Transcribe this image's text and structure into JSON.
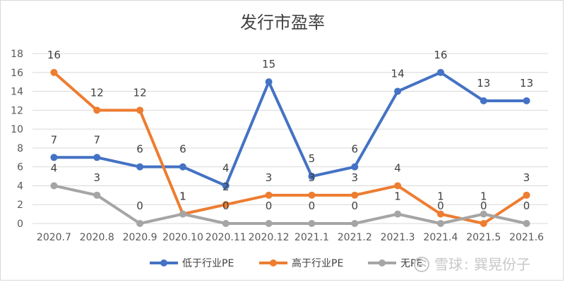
{
  "chart_data": {
    "type": "line",
    "title": "发行市盈率",
    "xlabel": "",
    "ylabel": "",
    "ylim": [
      0,
      18
    ],
    "ytick_step": 2,
    "grid": true,
    "legend_position": "bottom",
    "categories": [
      "2020.7",
      "2020.8",
      "2020.9",
      "2020.10",
      "2020.11",
      "2020.12",
      "2021.1",
      "2021.2",
      "2021.3",
      "2021.4",
      "2021.5",
      "2021.6"
    ],
    "series": [
      {
        "name": "低于行业PE",
        "color": "#4472c4",
        "values": [
          7,
          7,
          6,
          6,
          4,
          15,
          5,
          6,
          14,
          16,
          13,
          13
        ]
      },
      {
        "name": "高于行业PE",
        "color": "#ed7d31",
        "values": [
          16,
          12,
          12,
          1,
          2,
          3,
          3,
          3,
          4,
          1,
          0,
          3
        ]
      },
      {
        "name": "无PE",
        "color": "#a5a5a5",
        "values": [
          4,
          3,
          0,
          1,
          0,
          0,
          0,
          0,
          1,
          0,
          1,
          0
        ]
      }
    ]
  },
  "watermark": {
    "site": "雪球",
    "separator": ":",
    "author": "巽晃份子"
  }
}
